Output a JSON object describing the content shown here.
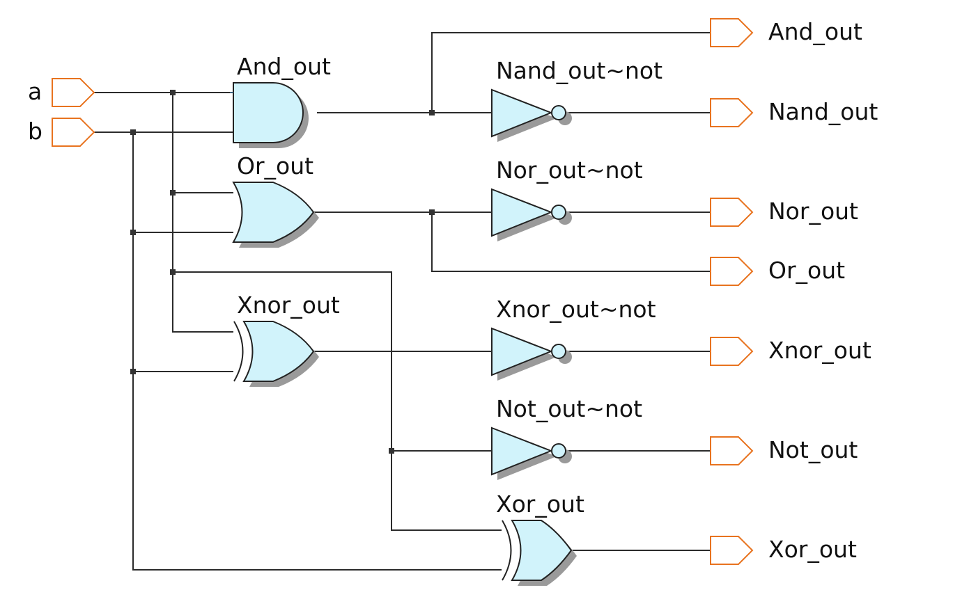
{
  "inputs": {
    "a": "a",
    "b": "b"
  },
  "gates": {
    "and": "And_out",
    "or": "Or_out",
    "xnor": "Xnor_out",
    "xor": "Xor_out",
    "nand_not": "Nand_out~not",
    "nor_not": "Nor_out~not",
    "xnor_not": "Xnor_out~not",
    "not_not": "Not_out~not"
  },
  "outputs": {
    "and_out": "And_out",
    "nand_out": "Nand_out",
    "nor_out": "Nor_out",
    "or_out": "Or_out",
    "xnor_out": "Xnor_out",
    "not_out": "Not_out",
    "xor_out": "Xor_out"
  },
  "colors": {
    "gate_fill": "#d1f3fb",
    "port_outline": "#e8731f",
    "wire": "#2b2b2b",
    "shadow": "#9a9a9a"
  }
}
